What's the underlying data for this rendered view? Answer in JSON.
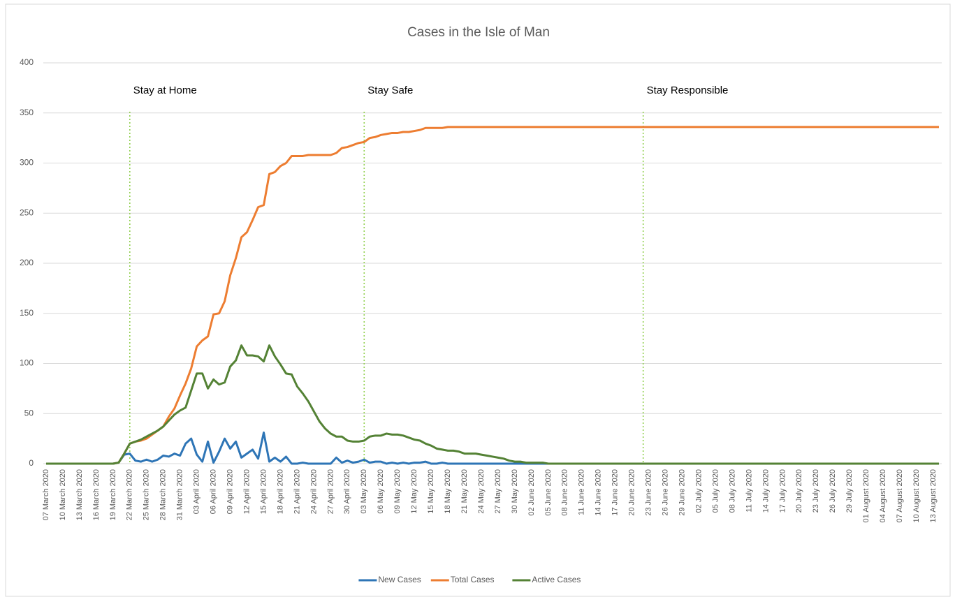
{
  "chart_data": {
    "type": "line",
    "title": "Cases in the Isle of Man",
    "categories": [
      "07 March 2020",
      null,
      null,
      "10 March 2020",
      null,
      null,
      "13 March 2020",
      null,
      null,
      "16 March 2020",
      null,
      null,
      "19 March 2020",
      null,
      null,
      "22 March 2020",
      null,
      null,
      "25 March 2020",
      null,
      null,
      "28 March 2020",
      null,
      null,
      "31 March 2020",
      null,
      null,
      "03 April 2020",
      null,
      null,
      "06 April 2020",
      null,
      null,
      "09 April 2020",
      null,
      null,
      "12 April 2020",
      null,
      null,
      "15 April 2020",
      null,
      null,
      "18 April 2020",
      null,
      null,
      "21 April 2020",
      null,
      null,
      "24 April 2020",
      null,
      null,
      "27 April 2020",
      null,
      null,
      "30 April 2020",
      null,
      null,
      "03 May 2020",
      null,
      null,
      "06 May 2020",
      null,
      null,
      "09 May 2020",
      null,
      null,
      "12 May 2020",
      null,
      null,
      "15 May 2020",
      null,
      null,
      "18 May 2020",
      null,
      null,
      "21 May 2020",
      null,
      null,
      "24 May 2020",
      null,
      null,
      "27 May 2020",
      null,
      null,
      "30 May 2020",
      null,
      null,
      "02 June 2020",
      null,
      null,
      "05 June 2020",
      null,
      null,
      "08 June 2020",
      null,
      null,
      "11 June 2020",
      null,
      null,
      "14 June 2020",
      null,
      null,
      "17 June 2020",
      null,
      null,
      "20 June 2020",
      null,
      null,
      "23 June 2020",
      null,
      null,
      "26 June 2020",
      null,
      null,
      "29 June 2020",
      null,
      null,
      "02 July 2020",
      null,
      null,
      "05 July 2020",
      null,
      null,
      "08 July 2020",
      null,
      null,
      "11 July 2020",
      null,
      null,
      "14 July 2020",
      null,
      null,
      "17 July 2020",
      null,
      null,
      "20 July 2020",
      null,
      null,
      "23 July 2020",
      null,
      null,
      "26 July 2020",
      null,
      null,
      "29 July 2020",
      null,
      null,
      "01 August 2020",
      null,
      null,
      "04 August 2020",
      null,
      null,
      "07 August 2020",
      null,
      null,
      "10 August 2020",
      null,
      null,
      "13 August 2020",
      null
    ],
    "series": [
      {
        "name": "New Cases",
        "color": "#2e75b6",
        "values": [
          0,
          0,
          0,
          0,
          0,
          0,
          0,
          0,
          0,
          0,
          0,
          0,
          0,
          1,
          9,
          10,
          3,
          2,
          4,
          2,
          4,
          8,
          7,
          10,
          8,
          20,
          25,
          9,
          2,
          22,
          1,
          12,
          25,
          15,
          22,
          6,
          10,
          14,
          5,
          31,
          2,
          6,
          2,
          7,
          0,
          0,
          1,
          0,
          0,
          0,
          0,
          0,
          6,
          1,
          3,
          1,
          2,
          4,
          1,
          2,
          2,
          0,
          1,
          0,
          1,
          0,
          1,
          1,
          2,
          0,
          0,
          1,
          0,
          0,
          0,
          0,
          0,
          0,
          0,
          0,
          0,
          0,
          0,
          0,
          0,
          0,
          0,
          0,
          0,
          0,
          0,
          0,
          0,
          0,
          0,
          0,
          0,
          0,
          0,
          0,
          0,
          0,
          0,
          0,
          0,
          0,
          0,
          0,
          0,
          0,
          0,
          0,
          0,
          0,
          0,
          0,
          0,
          0,
          0,
          0,
          0,
          0,
          0,
          0,
          0,
          0,
          0,
          0,
          0,
          0,
          0,
          0,
          0,
          0,
          0,
          0,
          0,
          0,
          0,
          0,
          0,
          0,
          0,
          0,
          0,
          0,
          0,
          0,
          0,
          0,
          0,
          0,
          0,
          0,
          0,
          0,
          0,
          0,
          0,
          0,
          0
        ]
      },
      {
        "name": "Total Cases",
        "color": "#ed7d31",
        "values": [
          0,
          0,
          0,
          0,
          0,
          0,
          0,
          0,
          0,
          0,
          0,
          0,
          0,
          1,
          10,
          20,
          22,
          23,
          25,
          29,
          33,
          37,
          47,
          55,
          68,
          80,
          95,
          117,
          123,
          127,
          149,
          150,
          162,
          188,
          205,
          226,
          231,
          243,
          256,
          258,
          289,
          291,
          297,
          300,
          307,
          307,
          307,
          308,
          308,
          308,
          308,
          308,
          310,
          315,
          316,
          318,
          320,
          321,
          325,
          326,
          328,
          329,
          330,
          330,
          331,
          331,
          332,
          333,
          335,
          335,
          335,
          335,
          336,
          336,
          336,
          336,
          336,
          336,
          336,
          336,
          336,
          336,
          336,
          336,
          336,
          336,
          336,
          336,
          336,
          336,
          336,
          336,
          336,
          336,
          336,
          336,
          336,
          336,
          336,
          336,
          336,
          336,
          336,
          336,
          336,
          336,
          336,
          336,
          336,
          336,
          336,
          336,
          336,
          336,
          336,
          336,
          336,
          336,
          336,
          336,
          336,
          336,
          336,
          336,
          336,
          336,
          336,
          336,
          336,
          336,
          336,
          336,
          336,
          336,
          336,
          336,
          336,
          336,
          336,
          336,
          336,
          336,
          336,
          336,
          336,
          336,
          336,
          336,
          336,
          336,
          336,
          336,
          336,
          336,
          336,
          336,
          336,
          336,
          336,
          336,
          336
        ]
      },
      {
        "name": "Active Cases",
        "color": "#548235",
        "values": [
          0,
          0,
          0,
          0,
          0,
          0,
          0,
          0,
          0,
          0,
          0,
          0,
          0,
          1,
          10,
          20,
          22,
          24,
          27,
          30,
          33,
          37,
          43,
          49,
          53,
          56,
          73,
          90,
          90,
          75,
          84,
          79,
          81,
          97,
          103,
          118,
          108,
          108,
          107,
          102,
          118,
          107,
          99,
          90,
          89,
          77,
          70,
          62,
          52,
          42,
          35,
          30,
          27,
          27,
          23,
          22,
          22,
          23,
          27,
          28,
          28,
          30,
          29,
          29,
          28,
          26,
          24,
          23,
          20,
          18,
          15,
          14,
          13,
          13,
          12,
          10,
          10,
          10,
          9,
          8,
          7,
          6,
          5,
          3,
          2,
          2,
          1,
          1,
          1,
          1,
          0,
          0,
          0,
          0,
          0,
          0,
          0,
          0,
          0,
          0,
          0,
          0,
          0,
          0,
          0,
          0,
          0,
          0,
          0,
          0,
          0,
          0,
          0,
          0,
          0,
          0,
          0,
          0,
          0,
          0,
          0,
          0,
          0,
          0,
          0,
          0,
          0,
          0,
          0,
          0,
          0,
          0,
          0,
          0,
          0,
          0,
          0,
          0,
          0,
          0,
          0,
          0,
          0,
          0,
          0,
          0,
          0,
          0,
          0,
          0,
          0,
          0,
          0,
          0,
          0,
          0,
          0,
          0,
          0,
          0,
          0
        ]
      }
    ],
    "annotations": [
      {
        "text": "Stay at Home",
        "index": 15
      },
      {
        "text": "Stay Safe",
        "index": 57
      },
      {
        "text": "Stay Responsible",
        "index": 107
      }
    ],
    "annotation_color": "#92d050",
    "ylim": [
      0,
      400
    ],
    "yticks": [
      0,
      50,
      100,
      150,
      200,
      250,
      300,
      350,
      400
    ],
    "grid": true,
    "legend": "bottom"
  }
}
